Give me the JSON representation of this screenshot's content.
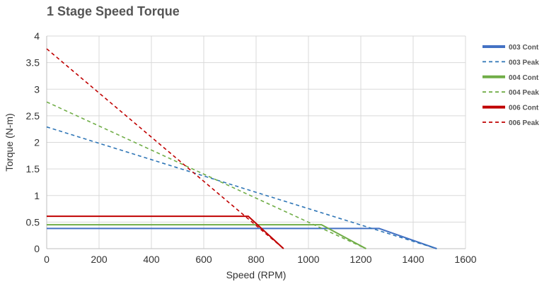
{
  "chart_data": {
    "type": "line",
    "title": "1 Stage Speed Torque",
    "xlabel": "Speed (RPM)",
    "ylabel": "Torque (N-m)",
    "xlim": [
      0,
      1600
    ],
    "ylim": [
      0,
      4
    ],
    "x_ticks": [
      "0",
      "200",
      "400",
      "600",
      "800",
      "1000",
      "1200",
      "1400",
      "1600"
    ],
    "y_ticks": [
      "0",
      "0.5",
      "1",
      "1.5",
      "2",
      "2.5",
      "3",
      "3.5",
      "4"
    ],
    "grid": true,
    "legend_position": "right",
    "series": [
      {
        "name": "003 Cont",
        "color": "#4472c4",
        "style": "solid",
        "x": [
          0,
          1270,
          1490
        ],
        "y": [
          0.38,
          0.38,
          0
        ]
      },
      {
        "name": "003 Peak",
        "color": "#2e75b6",
        "style": "dashed",
        "x": [
          0,
          1490
        ],
        "y": [
          2.29,
          0
        ]
      },
      {
        "name": "004 Cont",
        "color": "#70ad47",
        "style": "solid",
        "x": [
          0,
          1050,
          1220
        ],
        "y": [
          0.45,
          0.45,
          0
        ]
      },
      {
        "name": "004 Peak",
        "color": "#70ad47",
        "style": "dashed",
        "x": [
          0,
          1220
        ],
        "y": [
          2.76,
          0
        ]
      },
      {
        "name": "006 Cont",
        "color": "#c00000",
        "style": "solid",
        "x": [
          0,
          770,
          905
        ],
        "y": [
          0.61,
          0.61,
          0
        ]
      },
      {
        "name": "006 Peak",
        "color": "#c00000",
        "style": "dashed",
        "x": [
          0,
          905
        ],
        "y": [
          3.76,
          0
        ]
      }
    ]
  }
}
